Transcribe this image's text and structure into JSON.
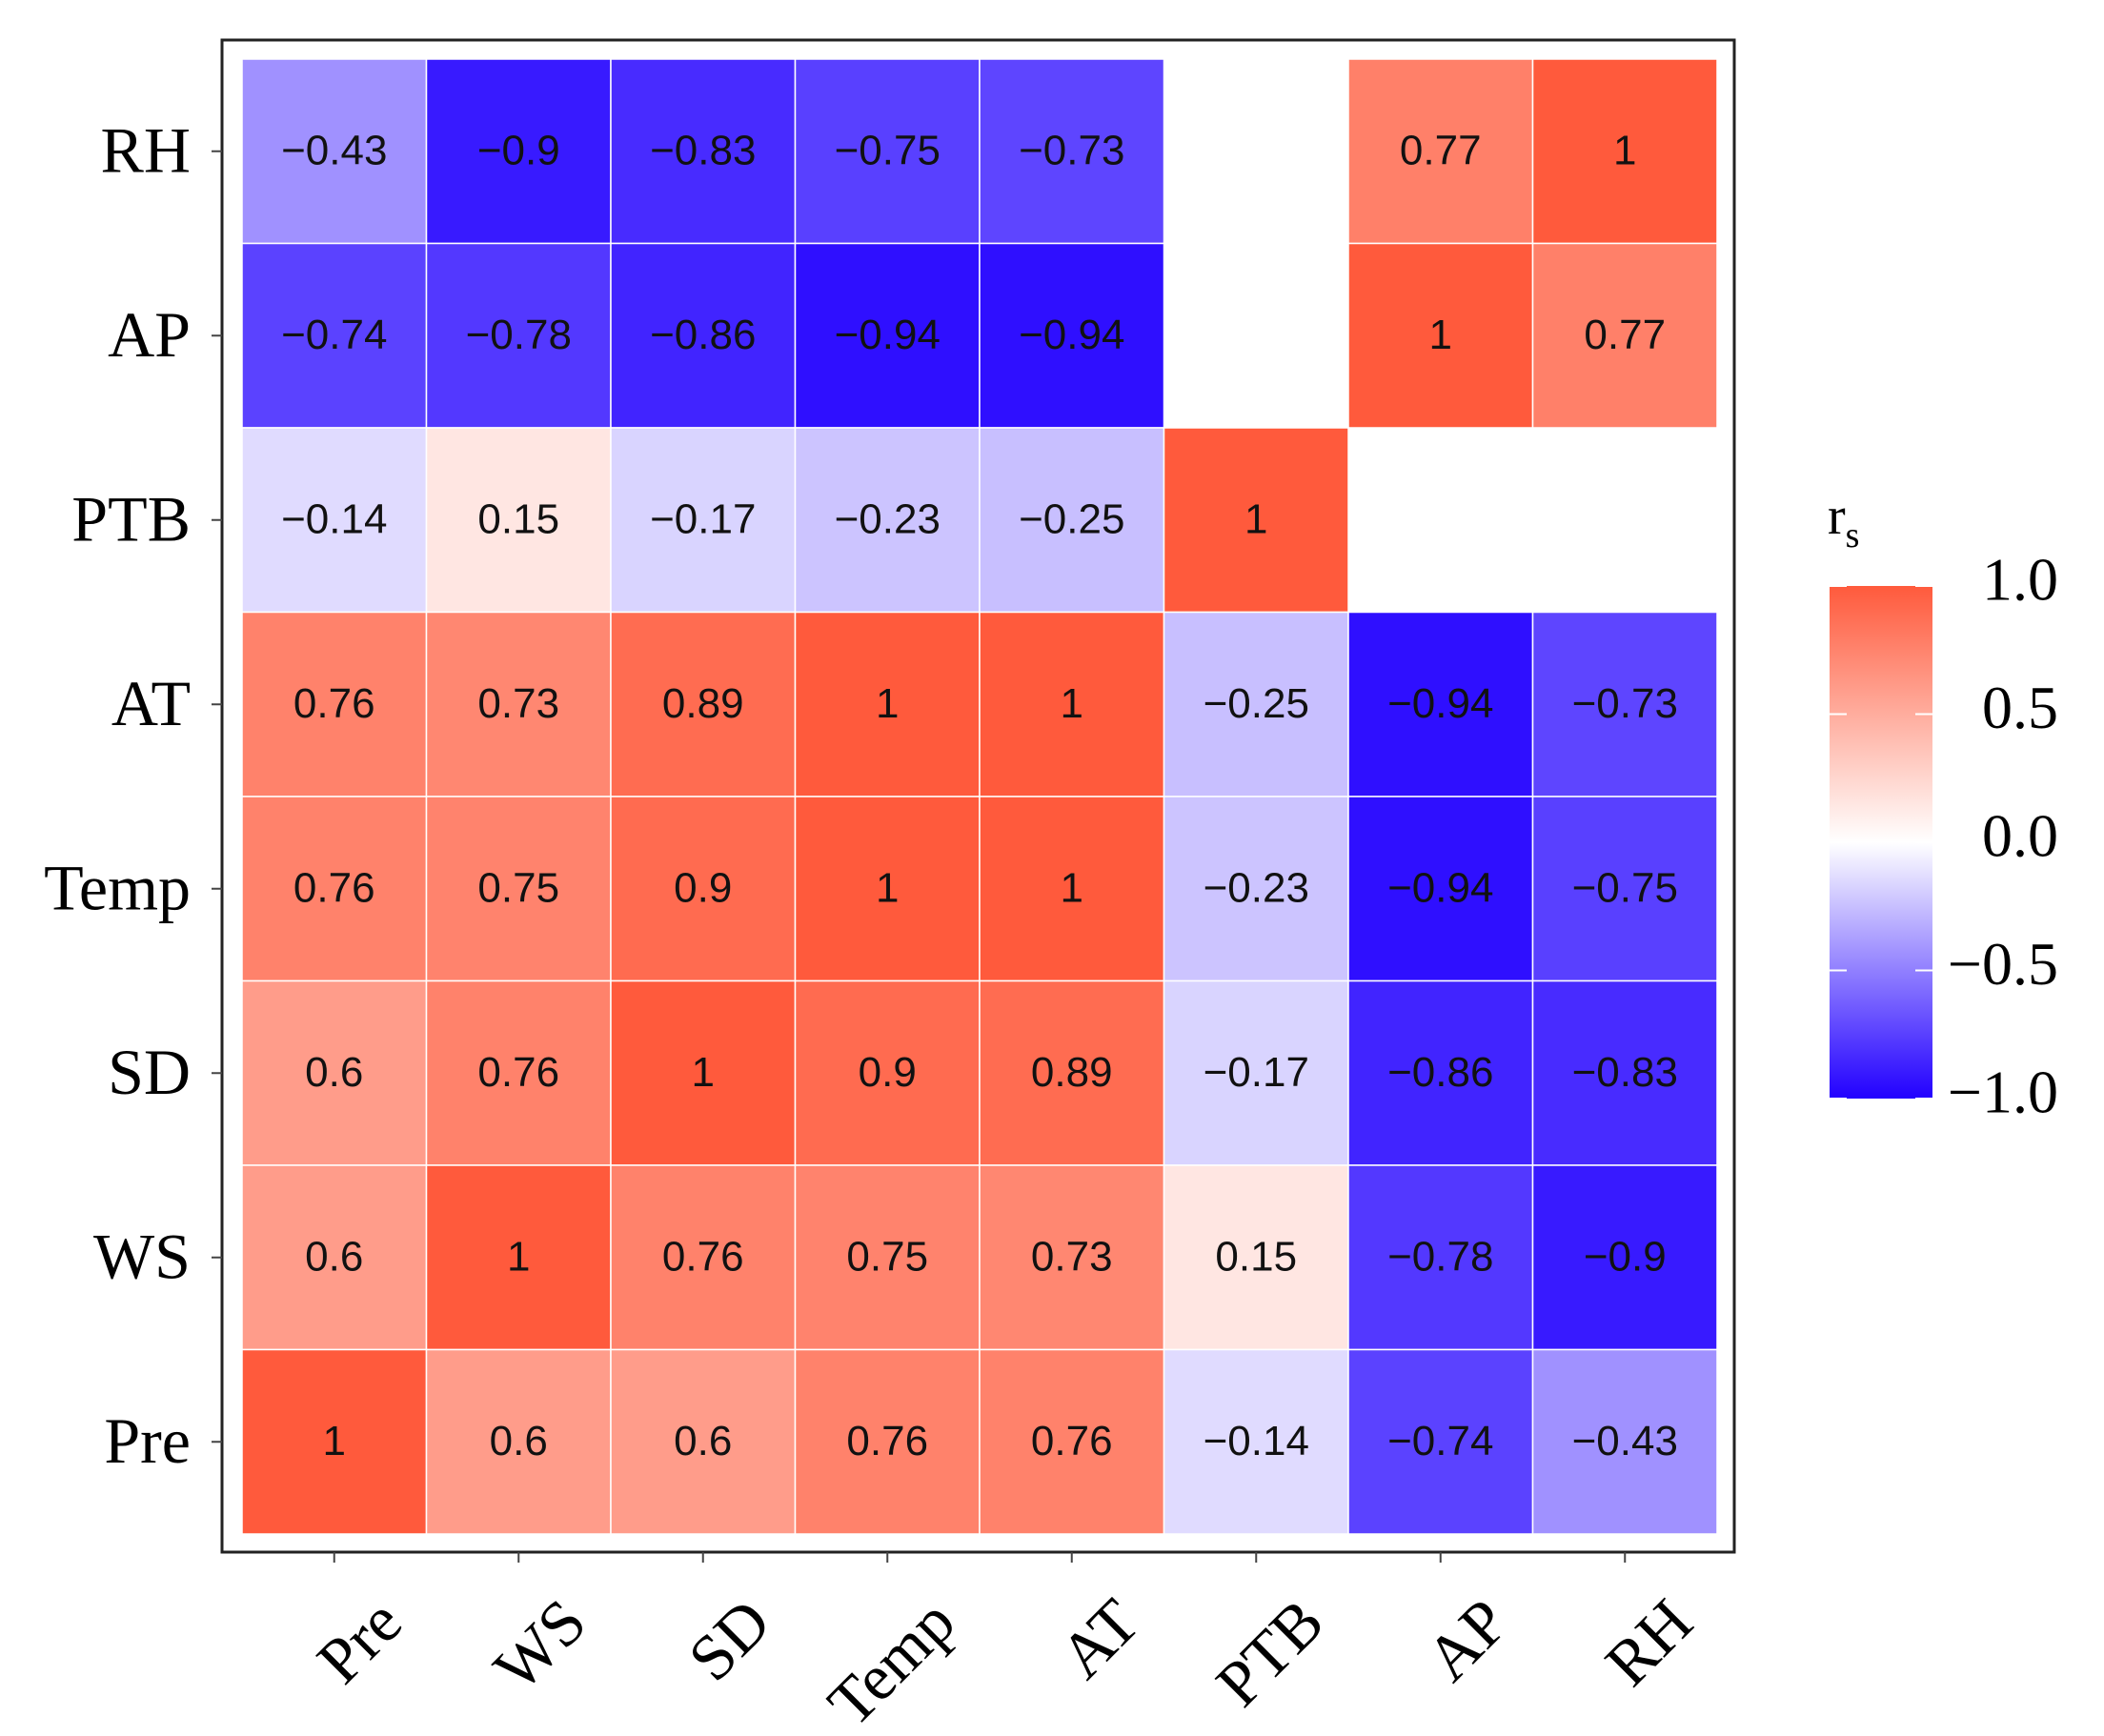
{
  "chart_data": {
    "type": "heatmap",
    "title": "",
    "xlabel": "",
    "ylabel": "",
    "x_labels": [
      "Pre",
      "WS",
      "SD",
      "Temp",
      "AT",
      "PTB",
      "AP",
      "RH"
    ],
    "y_labels": [
      "RH",
      "AP",
      "PTB",
      "AT",
      "Temp",
      "SD",
      "WS",
      "Pre"
    ],
    "values": [
      [
        -0.43,
        -0.9,
        -0.83,
        -0.75,
        -0.73,
        null,
        0.77,
        1
      ],
      [
        -0.74,
        -0.78,
        -0.86,
        -0.94,
        -0.94,
        null,
        1,
        0.77
      ],
      [
        -0.14,
        0.15,
        -0.17,
        -0.23,
        -0.25,
        1,
        null,
        null
      ],
      [
        0.76,
        0.73,
        0.89,
        1,
        1,
        -0.25,
        -0.94,
        -0.73
      ],
      [
        0.76,
        0.75,
        0.9,
        1,
        1,
        -0.23,
        -0.94,
        -0.75
      ],
      [
        0.6,
        0.76,
        1,
        0.9,
        0.89,
        -0.17,
        -0.86,
        -0.83
      ],
      [
        0.6,
        1,
        0.76,
        0.75,
        0.73,
        0.15,
        -0.78,
        -0.9
      ],
      [
        1,
        0.6,
        0.6,
        0.76,
        0.76,
        -0.14,
        -0.74,
        -0.43
      ]
    ],
    "labels": [
      [
        "−0.43",
        "−0.9",
        "−0.83",
        "−0.75",
        "−0.73",
        "",
        "0.77",
        "1"
      ],
      [
        "−0.74",
        "−0.78",
        "−0.86",
        "−0.94",
        "−0.94",
        "",
        "1",
        "0.77"
      ],
      [
        "−0.14",
        "0.15",
        "−0.17",
        "−0.23",
        "−0.25",
        "1",
        "",
        ""
      ],
      [
        "0.76",
        "0.73",
        "0.89",
        "1",
        "1",
        "−0.25",
        "−0.94",
        "−0.73"
      ],
      [
        "0.76",
        "0.75",
        "0.9",
        "1",
        "1",
        "−0.23",
        "−0.94",
        "−0.75"
      ],
      [
        "0.6",
        "0.76",
        "1",
        "0.9",
        "0.89",
        "−0.17",
        "−0.86",
        "−0.83"
      ],
      [
        "0.6",
        "1",
        "0.76",
        "0.75",
        "0.73",
        "0.15",
        "−0.78",
        "−0.9"
      ],
      [
        "1",
        "0.6",
        "0.6",
        "0.76",
        "0.76",
        "−0.14",
        "−0.74",
        "−0.43"
      ]
    ],
    "legend": {
      "title_main": "r",
      "title_sub": "s",
      "range": [
        -1,
        1
      ],
      "ticks": [
        1.0,
        0.5,
        0.0,
        -0.5,
        -1.0
      ],
      "tick_labels": [
        "1.0",
        "0.5",
        "0.0",
        "−0.5",
        "−1.0"
      ],
      "position": "right"
    },
    "colors": {
      "high": "#FF5A3C",
      "mid": "#FFFFFF",
      "low": "#2200FF"
    }
  }
}
